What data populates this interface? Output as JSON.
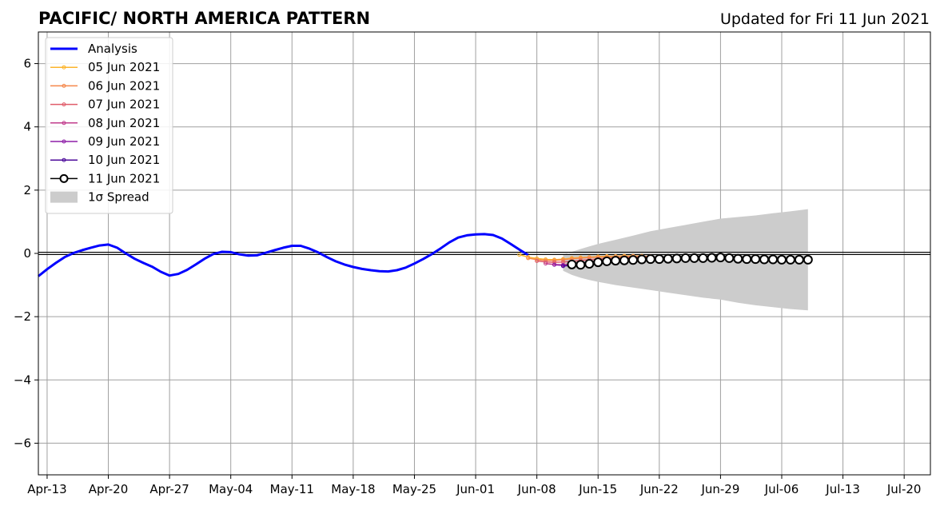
{
  "chart_data": {
    "type": "line",
    "title": "PACIFIC/ NORTH AMERICA PATTERN",
    "subtitle": "Updated for Fri 11 Jun 2021",
    "xlabel": "",
    "ylabel": "",
    "ylim": [
      -7,
      7
    ],
    "xlim": [
      "2021-04-12",
      "2021-07-23"
    ],
    "grid": true,
    "legend_position": "top-left",
    "x_ticks": [
      {
        "date": "2021-04-13",
        "label": "Apr-13"
      },
      {
        "date": "2021-04-20",
        "label": "Apr-20"
      },
      {
        "date": "2021-04-27",
        "label": "Apr-27"
      },
      {
        "date": "2021-05-04",
        "label": "May-04"
      },
      {
        "date": "2021-05-11",
        "label": "May-11"
      },
      {
        "date": "2021-05-18",
        "label": "May-18"
      },
      {
        "date": "2021-05-25",
        "label": "May-25"
      },
      {
        "date": "2021-06-01",
        "label": "Jun-01"
      },
      {
        "date": "2021-06-08",
        "label": "Jun-08"
      },
      {
        "date": "2021-06-15",
        "label": "Jun-15"
      },
      {
        "date": "2021-06-22",
        "label": "Jun-22"
      },
      {
        "date": "2021-06-29",
        "label": "Jun-29"
      },
      {
        "date": "2021-07-06",
        "label": "Jul-06"
      },
      {
        "date": "2021-07-13",
        "label": "Jul-13"
      },
      {
        "date": "2021-07-20",
        "label": "Jul-20"
      }
    ],
    "y_ticks": [
      {
        "value": 6,
        "label": "6"
      },
      {
        "value": 4,
        "label": "4"
      },
      {
        "value": 2,
        "label": "2"
      },
      {
        "value": 0,
        "label": "0"
      },
      {
        "value": -2,
        "label": "−2"
      },
      {
        "value": -4,
        "label": "−4"
      },
      {
        "value": -6,
        "label": "−6"
      }
    ],
    "series": [
      {
        "name": "Analysis",
        "color": "#0000ff",
        "style": "line",
        "x": [
          "2021-04-12",
          "2021-04-13",
          "2021-04-14",
          "2021-04-15",
          "2021-04-16",
          "2021-04-17",
          "2021-04-18",
          "2021-04-19",
          "2021-04-20",
          "2021-04-21",
          "2021-04-22",
          "2021-04-23",
          "2021-04-24",
          "2021-04-25",
          "2021-04-26",
          "2021-04-27",
          "2021-04-28",
          "2021-04-29",
          "2021-04-30",
          "2021-05-01",
          "2021-05-02",
          "2021-05-03",
          "2021-05-04",
          "2021-05-05",
          "2021-05-06",
          "2021-05-07",
          "2021-05-08",
          "2021-05-09",
          "2021-05-10",
          "2021-05-11",
          "2021-05-12",
          "2021-05-13",
          "2021-05-14",
          "2021-05-15",
          "2021-05-16",
          "2021-05-17",
          "2021-05-18",
          "2021-05-19",
          "2021-05-20",
          "2021-05-21",
          "2021-05-22",
          "2021-05-23",
          "2021-05-24",
          "2021-05-25",
          "2021-05-26",
          "2021-05-27",
          "2021-05-28",
          "2021-05-29",
          "2021-05-30",
          "2021-05-31",
          "2021-06-01",
          "2021-06-02",
          "2021-06-03",
          "2021-06-04",
          "2021-06-05",
          "2021-06-06",
          "2021-06-07"
        ],
        "y": [
          -0.72,
          -0.5,
          -0.3,
          -0.12,
          0.01,
          0.1,
          0.18,
          0.25,
          0.28,
          0.18,
          0.0,
          -0.17,
          -0.3,
          -0.42,
          -0.58,
          -0.7,
          -0.65,
          -0.52,
          -0.35,
          -0.17,
          -0.02,
          0.05,
          0.04,
          -0.03,
          -0.07,
          -0.06,
          0.02,
          0.1,
          0.18,
          0.24,
          0.24,
          0.15,
          0.03,
          -0.12,
          -0.25,
          -0.35,
          -0.43,
          -0.49,
          -0.53,
          -0.56,
          -0.57,
          -0.53,
          -0.45,
          -0.32,
          -0.18,
          -0.02,
          0.16,
          0.35,
          0.5,
          0.57,
          0.6,
          0.61,
          0.58,
          0.47,
          0.3,
          0.12,
          -0.05
        ]
      },
      {
        "name": "05 Jun 2021",
        "color": "#fcb42c",
        "style": "marker-line",
        "x": [
          "2021-06-06",
          "2021-06-07",
          "2021-06-08",
          "2021-06-09",
          "2021-06-10",
          "2021-06-11",
          "2021-06-12",
          "2021-06-13",
          "2021-06-14",
          "2021-06-15",
          "2021-06-16",
          "2021-06-17",
          "2021-06-18",
          "2021-06-19",
          "2021-06-20"
        ],
        "y": [
          -0.04,
          -0.12,
          -0.16,
          -0.19,
          -0.2,
          -0.18,
          -0.15,
          -0.13,
          -0.12,
          -0.1,
          -0.09,
          -0.09,
          -0.08,
          -0.08,
          -0.08
        ]
      },
      {
        "name": "06 Jun 2021",
        "color": "#f5874a",
        "style": "marker-line",
        "x": [
          "2021-06-07",
          "2021-06-08",
          "2021-06-09",
          "2021-06-10",
          "2021-06-11",
          "2021-06-12",
          "2021-06-13",
          "2021-06-14",
          "2021-06-15",
          "2021-06-16",
          "2021-06-17",
          "2021-06-18",
          "2021-06-19",
          "2021-06-20",
          "2021-06-21"
        ],
        "y": [
          -0.15,
          -0.2,
          -0.22,
          -0.22,
          -0.2,
          -0.17,
          -0.15,
          -0.13,
          -0.12,
          -0.11,
          -0.1,
          -0.1,
          -0.09,
          -0.09,
          -0.09
        ]
      },
      {
        "name": "07 Jun 2021",
        "color": "#e05c6a",
        "style": "marker-line",
        "x": [
          "2021-06-08",
          "2021-06-09",
          "2021-06-10",
          "2021-06-11",
          "2021-06-12",
          "2021-06-13",
          "2021-06-14",
          "2021-06-15",
          "2021-06-16",
          "2021-06-17",
          "2021-06-18",
          "2021-06-19",
          "2021-06-20",
          "2021-06-21",
          "2021-06-22"
        ],
        "y": [
          -0.24,
          -0.27,
          -0.28,
          -0.27,
          -0.25,
          -0.22,
          -0.2,
          -0.18,
          -0.16,
          -0.15,
          -0.14,
          -0.13,
          -0.13,
          -0.12,
          -0.12
        ]
      },
      {
        "name": "08 Jun 2021",
        "color": "#c13c8c",
        "style": "marker-line",
        "x": [
          "2021-06-09",
          "2021-06-10",
          "2021-06-11",
          "2021-06-12",
          "2021-06-13",
          "2021-06-14",
          "2021-06-15",
          "2021-06-16",
          "2021-06-17",
          "2021-06-18",
          "2021-06-19",
          "2021-06-20",
          "2021-06-21",
          "2021-06-22",
          "2021-06-23"
        ],
        "y": [
          -0.32,
          -0.35,
          -0.36,
          -0.33,
          -0.3,
          -0.27,
          -0.24,
          -0.22,
          -0.2,
          -0.19,
          -0.18,
          -0.17,
          -0.17,
          -0.16,
          -0.16
        ]
      },
      {
        "name": "09 Jun 2021",
        "color": "#8e1ea8",
        "style": "marker-line",
        "x": [
          "2021-06-10",
          "2021-06-11",
          "2021-06-12",
          "2021-06-13",
          "2021-06-14",
          "2021-06-15",
          "2021-06-16",
          "2021-06-17",
          "2021-06-18",
          "2021-06-19",
          "2021-06-20",
          "2021-06-21",
          "2021-06-22",
          "2021-06-23",
          "2021-06-24"
        ],
        "y": [
          -0.36,
          -0.38,
          -0.37,
          -0.34,
          -0.31,
          -0.28,
          -0.25,
          -0.23,
          -0.21,
          -0.2,
          -0.19,
          -0.18,
          -0.18,
          -0.17,
          -0.17
        ]
      },
      {
        "name": "10 Jun 2021",
        "color": "#4c0a9a",
        "style": "marker-line",
        "x": [
          "2021-06-11",
          "2021-06-12",
          "2021-06-13",
          "2021-06-14",
          "2021-06-15",
          "2021-06-16",
          "2021-06-17",
          "2021-06-18",
          "2021-06-19",
          "2021-06-20",
          "2021-06-21",
          "2021-06-22",
          "2021-06-23",
          "2021-06-24",
          "2021-06-25"
        ],
        "y": [
          -0.4,
          -0.38,
          -0.35,
          -0.32,
          -0.29,
          -0.26,
          -0.24,
          -0.22,
          -0.21,
          -0.2,
          -0.19,
          -0.18,
          -0.18,
          -0.17,
          -0.17
        ]
      },
      {
        "name": "11 Jun 2021",
        "color": "#000000",
        "style": "circle-line",
        "x": [
          "2021-06-12",
          "2021-06-13",
          "2021-06-14",
          "2021-06-15",
          "2021-06-16",
          "2021-06-17",
          "2021-06-18",
          "2021-06-19",
          "2021-06-20",
          "2021-06-21",
          "2021-06-22",
          "2021-06-23",
          "2021-06-24",
          "2021-06-25",
          "2021-06-26",
          "2021-06-27",
          "2021-06-28",
          "2021-06-29",
          "2021-06-30",
          "2021-07-01",
          "2021-07-02",
          "2021-07-03",
          "2021-07-04",
          "2021-07-05",
          "2021-07-06",
          "2021-07-07",
          "2021-07-08",
          "2021-07-09"
        ],
        "y": [
          -0.35,
          -0.36,
          -0.33,
          -0.28,
          -0.25,
          -0.23,
          -0.22,
          -0.21,
          -0.19,
          -0.18,
          -0.18,
          -0.17,
          -0.16,
          -0.15,
          -0.15,
          -0.15,
          -0.14,
          -0.13,
          -0.15,
          -0.17,
          -0.18,
          -0.18,
          -0.19,
          -0.19,
          -0.2,
          -0.2,
          -0.2,
          -0.2
        ]
      }
    ],
    "spread": {
      "name": "1σ Spread",
      "color": "#cccccc",
      "x": [
        "2021-06-11",
        "2021-06-12",
        "2021-06-13",
        "2021-06-14",
        "2021-06-15",
        "2021-06-17",
        "2021-06-19",
        "2021-06-21",
        "2021-06-23",
        "2021-06-25",
        "2021-06-27",
        "2021-06-29",
        "2021-07-01",
        "2021-07-03",
        "2021-07-05",
        "2021-07-07",
        "2021-07-09"
      ],
      "upper": [
        -0.05,
        0.05,
        0.14,
        0.22,
        0.3,
        0.43,
        0.56,
        0.7,
        0.8,
        0.9,
        1.0,
        1.1,
        1.15,
        1.2,
        1.27,
        1.33,
        1.4
      ],
      "lower": [
        -0.55,
        -0.68,
        -0.77,
        -0.84,
        -0.9,
        -1.0,
        -1.08,
        -1.16,
        -1.24,
        -1.32,
        -1.4,
        -1.46,
        -1.56,
        -1.64,
        -1.7,
        -1.76,
        -1.8
      ]
    }
  }
}
